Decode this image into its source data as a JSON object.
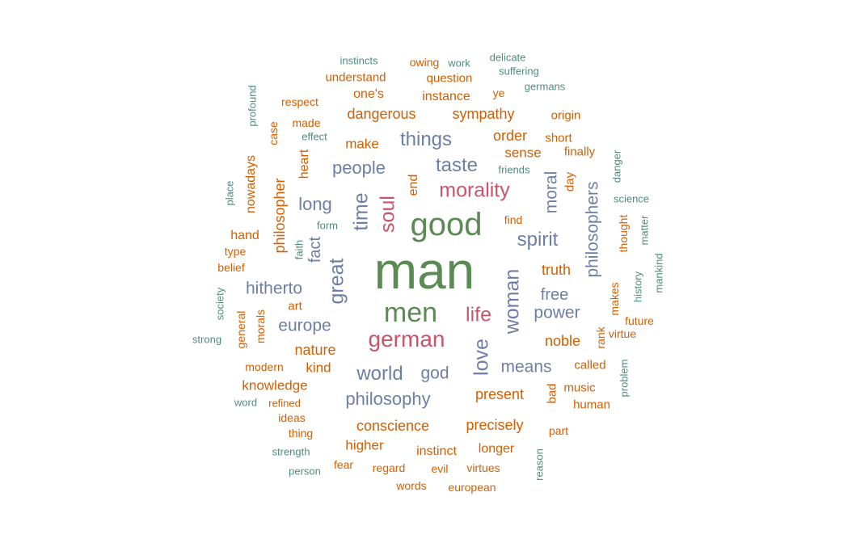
{
  "palette": {
    "orange": "#d55e00",
    "slate": "#6e7fa6",
    "rose": "#c9556b",
    "green": "#5b8a55",
    "teal": "#4f8c7e"
  },
  "words": [
    {
      "t": "man",
      "c": "green"
    },
    {
      "t": "good",
      "c": "green"
    },
    {
      "t": "men",
      "c": "green"
    },
    {
      "t": "german",
      "c": "rose"
    },
    {
      "t": "morality",
      "c": "rose"
    },
    {
      "t": "life",
      "c": "rose"
    },
    {
      "t": "soul",
      "c": "rose"
    },
    {
      "t": "time",
      "c": "slate"
    },
    {
      "t": "things",
      "c": "slate"
    },
    {
      "t": "taste",
      "c": "slate"
    },
    {
      "t": "people",
      "c": "slate"
    },
    {
      "t": "spirit",
      "c": "slate"
    },
    {
      "t": "long",
      "c": "slate"
    },
    {
      "t": "hitherto",
      "c": "slate"
    },
    {
      "t": "europe",
      "c": "slate"
    },
    {
      "t": "world",
      "c": "slate"
    },
    {
      "t": "god",
      "c": "slate"
    },
    {
      "t": "philosophy",
      "c": "slate"
    },
    {
      "t": "means",
      "c": "slate"
    },
    {
      "t": "power",
      "c": "slate"
    },
    {
      "t": "free",
      "c": "slate"
    },
    {
      "t": "woman",
      "c": "slate"
    },
    {
      "t": "great",
      "c": "slate"
    },
    {
      "t": "love",
      "c": "slate"
    },
    {
      "t": "fact",
      "c": "slate"
    },
    {
      "t": "moral",
      "c": "slate"
    },
    {
      "t": "philosophers",
      "c": "slate"
    },
    {
      "t": "dangerous",
      "c": "orange"
    },
    {
      "t": "sympathy",
      "c": "orange"
    },
    {
      "t": "instance",
      "c": "orange"
    },
    {
      "t": "one's",
      "c": "orange"
    },
    {
      "t": "order",
      "c": "orange"
    },
    {
      "t": "sense",
      "c": "orange"
    },
    {
      "t": "make",
      "c": "orange"
    },
    {
      "t": "understand",
      "c": "orange"
    },
    {
      "t": "question",
      "c": "orange"
    },
    {
      "t": "owing",
      "c": "orange"
    },
    {
      "t": "respect",
      "c": "orange"
    },
    {
      "t": "made",
      "c": "orange"
    },
    {
      "t": "ye",
      "c": "orange"
    },
    {
      "t": "origin",
      "c": "orange"
    },
    {
      "t": "short",
      "c": "orange"
    },
    {
      "t": "finally",
      "c": "orange"
    },
    {
      "t": "heart",
      "c": "orange"
    },
    {
      "t": "end",
      "c": "orange"
    },
    {
      "t": "day",
      "c": "orange"
    },
    {
      "t": "nowadays",
      "c": "orange"
    },
    {
      "t": "philosopher",
      "c": "orange"
    },
    {
      "t": "hand",
      "c": "orange"
    },
    {
      "t": "type",
      "c": "orange"
    },
    {
      "t": "belief",
      "c": "orange"
    },
    {
      "t": "find",
      "c": "orange"
    },
    {
      "t": "truth",
      "c": "orange"
    },
    {
      "t": "art",
      "c": "orange"
    },
    {
      "t": "nature",
      "c": "orange"
    },
    {
      "t": "kind",
      "c": "orange"
    },
    {
      "t": "noble",
      "c": "orange"
    },
    {
      "t": "modern",
      "c": "orange"
    },
    {
      "t": "knowledge",
      "c": "orange"
    },
    {
      "t": "called",
      "c": "orange"
    },
    {
      "t": "music",
      "c": "orange"
    },
    {
      "t": "human",
      "c": "orange"
    },
    {
      "t": "present",
      "c": "orange"
    },
    {
      "t": "bad",
      "c": "orange"
    },
    {
      "t": "refined",
      "c": "orange"
    },
    {
      "t": "ideas",
      "c": "orange"
    },
    {
      "t": "thing",
      "c": "orange"
    },
    {
      "t": "conscience",
      "c": "orange"
    },
    {
      "t": "precisely",
      "c": "orange"
    },
    {
      "t": "part",
      "c": "orange"
    },
    {
      "t": "higher",
      "c": "orange"
    },
    {
      "t": "instinct",
      "c": "orange"
    },
    {
      "t": "longer",
      "c": "orange"
    },
    {
      "t": "fear",
      "c": "orange"
    },
    {
      "t": "regard",
      "c": "orange"
    },
    {
      "t": "evil",
      "c": "orange"
    },
    {
      "t": "virtues",
      "c": "orange"
    },
    {
      "t": "words",
      "c": "orange"
    },
    {
      "t": "european",
      "c": "orange"
    },
    {
      "t": "case",
      "c": "orange"
    },
    {
      "t": "makes",
      "c": "orange"
    },
    {
      "t": "virtue",
      "c": "orange"
    },
    {
      "t": "thought",
      "c": "orange"
    },
    {
      "t": "general",
      "c": "orange"
    },
    {
      "t": "morals",
      "c": "orange"
    },
    {
      "t": "future",
      "c": "orange"
    },
    {
      "t": "rank",
      "c": "orange"
    },
    {
      "t": "instincts",
      "c": "teal"
    },
    {
      "t": "work",
      "c": "teal"
    },
    {
      "t": "delicate",
      "c": "teal"
    },
    {
      "t": "suffering",
      "c": "teal"
    },
    {
      "t": "germans",
      "c": "teal"
    },
    {
      "t": "profound",
      "c": "teal"
    },
    {
      "t": "effect",
      "c": "teal"
    },
    {
      "t": "friends",
      "c": "teal"
    },
    {
      "t": "danger",
      "c": "teal"
    },
    {
      "t": "science",
      "c": "teal"
    },
    {
      "t": "place",
      "c": "teal"
    },
    {
      "t": "form",
      "c": "teal"
    },
    {
      "t": "faith",
      "c": "teal"
    },
    {
      "t": "matter",
      "c": "teal"
    },
    {
      "t": "mankind",
      "c": "teal"
    },
    {
      "t": "history",
      "c": "teal"
    },
    {
      "t": "society",
      "c": "teal"
    },
    {
      "t": "strong",
      "c": "teal"
    },
    {
      "t": "word",
      "c": "teal"
    },
    {
      "t": "problem",
      "c": "teal"
    },
    {
      "t": "strength",
      "c": "teal"
    },
    {
      "t": "person",
      "c": "teal"
    },
    {
      "t": "reason",
      "c": "teal"
    }
  ]
}
